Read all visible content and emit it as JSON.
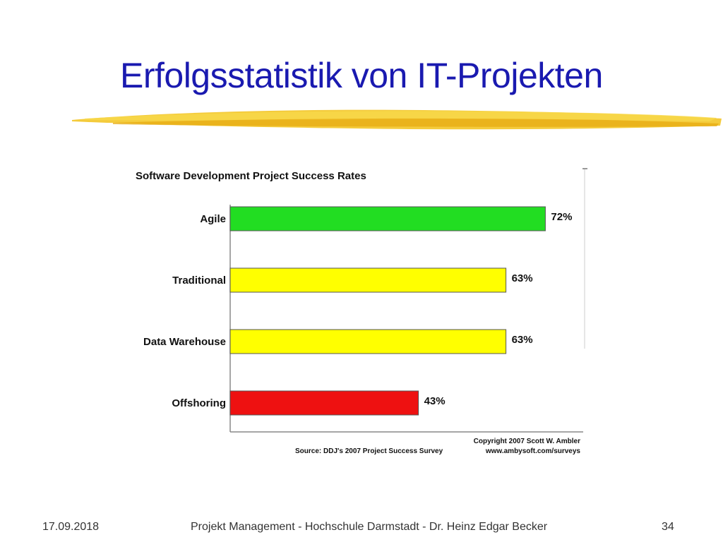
{
  "slide": {
    "title": "Erfolgsstatistik von IT-Projekten"
  },
  "footer": {
    "date": "17.09.2018",
    "center": "Projekt Management - Hochschule Darmstadt - Dr. Heinz Edgar Becker",
    "page": "34"
  },
  "colors": {
    "title": "#1a1ab0",
    "brush": "#f2c21a"
  },
  "chart_data": {
    "type": "bar",
    "orientation": "horizontal",
    "title": "Software Development Project Success Rates",
    "categories": [
      "Agile",
      "Traditional",
      "Data Warehouse",
      "Offshoring"
    ],
    "values": [
      72,
      63,
      63,
      43
    ],
    "value_labels": [
      "72%",
      "63%",
      "63%",
      "43%"
    ],
    "colors": [
      "#22dd22",
      "#ffff00",
      "#ffff00",
      "#ee1111"
    ],
    "xlim": [
      0,
      100
    ],
    "grid": false,
    "annotations": [
      "Copyright 2007 Scott W. Ambler",
      "Source: DDJ's 2007 Project Success Survey",
      "www.ambysoft.com/surveys"
    ]
  }
}
